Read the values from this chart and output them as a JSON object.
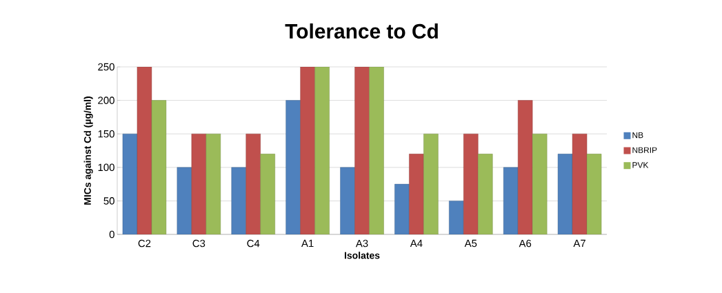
{
  "chart_data": {
    "type": "bar",
    "title": "Tolerance to Cd",
    "xlabel": "Isolates",
    "ylabel": "MICs against Cd (µg/ml)",
    "categories": [
      "C2",
      "C3",
      "C4",
      "A1",
      "A3",
      "A4",
      "A5",
      "A6",
      "A7"
    ],
    "series": [
      {
        "name": "NB",
        "color": "#4f81bd",
        "values": [
          150,
          100,
          100,
          200,
          100,
          75,
          50,
          100,
          120
        ]
      },
      {
        "name": "NBRIP",
        "color": "#c0504d",
        "values": [
          250,
          150,
          150,
          250,
          250,
          120,
          150,
          200,
          150
        ]
      },
      {
        "name": "PVK",
        "color": "#9bbb59",
        "values": [
          200,
          150,
          120,
          250,
          250,
          150,
          120,
          150,
          120
        ]
      }
    ],
    "ylim": [
      0,
      250
    ],
    "yticks": [
      0,
      50,
      100,
      150,
      200,
      250
    ],
    "grid": "y",
    "legend": "right"
  }
}
